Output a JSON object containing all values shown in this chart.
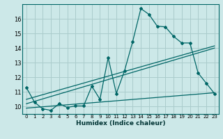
{
  "title": "",
  "xlabel": "Humidex (Indice chaleur)",
  "bg_color": "#cce8e8",
  "grid_color": "#aacccc",
  "line_color": "#006666",
  "xlim": [
    -0.5,
    23.5
  ],
  "ylim": [
    9.5,
    17.0
  ],
  "yticks": [
    10,
    11,
    12,
    13,
    14,
    15,
    16
  ],
  "xticks": [
    0,
    1,
    2,
    3,
    4,
    5,
    6,
    7,
    8,
    9,
    10,
    11,
    12,
    13,
    14,
    15,
    16,
    17,
    18,
    19,
    20,
    21,
    22,
    23
  ],
  "line1_x": [
    0,
    1,
    2,
    3,
    4,
    5,
    6,
    7,
    8,
    9,
    10,
    11,
    12,
    13,
    14,
    15,
    16,
    17,
    18,
    19,
    20,
    21,
    22,
    23
  ],
  "line1_y": [
    11.3,
    10.3,
    9.85,
    9.75,
    10.2,
    9.95,
    10.05,
    10.05,
    11.4,
    10.5,
    13.35,
    10.9,
    12.45,
    14.45,
    16.7,
    16.3,
    15.5,
    15.45,
    14.8,
    14.35,
    14.35,
    12.3,
    11.6,
    10.9
  ],
  "line2_x": [
    0,
    23
  ],
  "line2_y": [
    10.5,
    14.15
  ],
  "line3_x": [
    0,
    23
  ],
  "line3_y": [
    10.2,
    14.0
  ],
  "line4_x": [
    0,
    23
  ],
  "line4_y": [
    9.9,
    10.95
  ]
}
